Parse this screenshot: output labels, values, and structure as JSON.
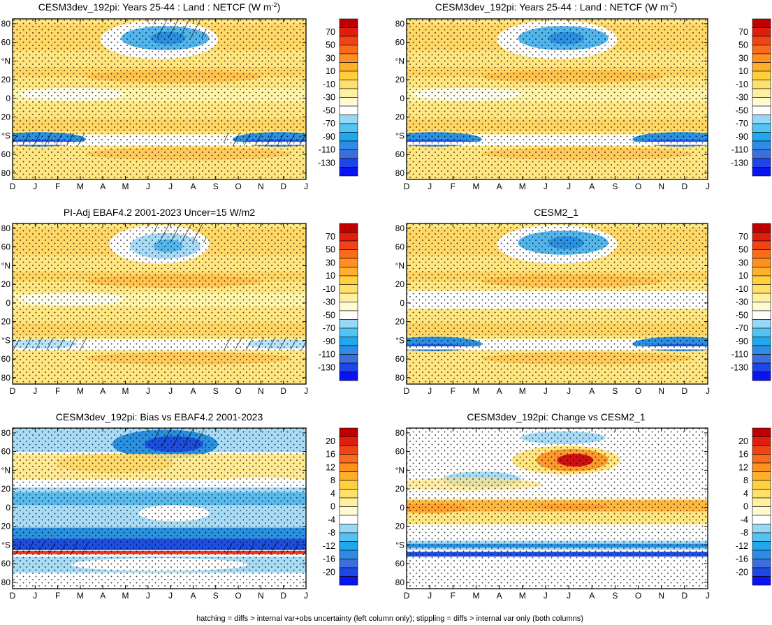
{
  "footer": "hatching = diffs > internal var+obs uncertainty (left column only); stippling = diffs > internal var only (both columns)",
  "colors": {
    "abs_scale": [
      "#0a14f0",
      "#1e46e6",
      "#3c6edc",
      "#2c8ce6",
      "#20a8ee",
      "#52c4f2",
      "#96d8f6",
      "#ffffff",
      "#fffad2",
      "#fff0a0",
      "#ffe06a",
      "#ffcf3c",
      "#ffb02a",
      "#ff9020",
      "#fa6c1a",
      "#f04414",
      "#e01e0e",
      "#c00000"
    ],
    "diff_scale": [
      "#0a14f0",
      "#1e46e6",
      "#3c6edc",
      "#2c8ce6",
      "#20a8ee",
      "#52c4f2",
      "#96d8f6",
      "#ffffff",
      "#fffad2",
      "#fff0a0",
      "#ffe06a",
      "#ffcf3c",
      "#ffb02a",
      "#ff9020",
      "#fa6c1a",
      "#f04414",
      "#e01e0e",
      "#c00000"
    ]
  },
  "chart_data": [
    {
      "type": "heatmap",
      "title": "CESM3dev_192pi: Years 25-44 : Land : NETCF (W m",
      "title_sup": "-2",
      "title_tail": ")",
      "x": [
        "D",
        "J",
        "F",
        "M",
        "A",
        "M",
        "J",
        "J",
        "A",
        "S",
        "O",
        "N",
        "D",
        "J"
      ],
      "y_ticks": [
        "80",
        "60",
        "°N",
        "20",
        "0",
        "20",
        "°S",
        "60",
        "80"
      ],
      "colorbar": [
        "70",
        "50",
        "30",
        "10",
        "-10",
        "-30",
        "-50",
        "-70",
        "-90",
        "-110",
        "-130"
      ],
      "hatching": true,
      "fields": {
        "base": "yellow",
        "blob_north": "blue",
        "band_south": "blue"
      }
    },
    {
      "type": "heatmap",
      "title": "CESM3dev_192pi: Years 25-44 : Land : NETCF (W m",
      "title_sup": "-2",
      "title_tail": ")",
      "x": [
        "D",
        "J",
        "F",
        "M",
        "A",
        "M",
        "J",
        "J",
        "A",
        "S",
        "O",
        "N",
        "D",
        "J"
      ],
      "y_ticks": [
        "80",
        "60",
        "°N",
        "20",
        "0",
        "20",
        "°S",
        "60",
        "80"
      ],
      "colorbar": [
        "70",
        "50",
        "30",
        "10",
        "-10",
        "-30",
        "-50",
        "-70",
        "-90",
        "-110",
        "-130"
      ],
      "hatching": false,
      "fields": {
        "base": "yellow",
        "blob_north": "blue",
        "band_south": "blue"
      }
    },
    {
      "type": "heatmap",
      "title": "PI-Adj EBAF4.2 2001-2023 Uncer=15 W/m2",
      "x": [
        "D",
        "J",
        "F",
        "M",
        "A",
        "M",
        "J",
        "J",
        "A",
        "S",
        "O",
        "N",
        "D",
        "J"
      ],
      "y_ticks": [
        "80",
        "60",
        "°N",
        "20",
        "0",
        "20",
        "°S",
        "60",
        "80"
      ],
      "colorbar": [
        "70",
        "50",
        "30",
        "10",
        "-10",
        "-30",
        "-50",
        "-70",
        "-90",
        "-110",
        "-130"
      ],
      "hatching": true,
      "fields": {
        "base": "yellow",
        "blob_north": "lightblue",
        "band_south": "white"
      }
    },
    {
      "type": "heatmap",
      "title": "CESM2_1",
      "x": [
        "D",
        "J",
        "F",
        "M",
        "A",
        "M",
        "J",
        "J",
        "A",
        "S",
        "O",
        "N",
        "D",
        "J"
      ],
      "y_ticks": [
        "80",
        "60",
        "°N",
        "20",
        "0",
        "20",
        "°S",
        "60",
        "80"
      ],
      "colorbar": [
        "70",
        "50",
        "30",
        "10",
        "-10",
        "-30",
        "-50",
        "-70",
        "-90",
        "-110",
        "-130"
      ],
      "hatching": false,
      "fields": {
        "base": "yellow",
        "blob_north": "blue",
        "band_south": "blue"
      }
    },
    {
      "type": "heatmap",
      "title": "CESM3dev_192pi: Bias vs EBAF4.2 2001-2023",
      "x": [
        "D",
        "J",
        "F",
        "M",
        "A",
        "M",
        "J",
        "J",
        "A",
        "S",
        "O",
        "N",
        "D",
        "J"
      ],
      "y_ticks": [
        "80",
        "60",
        "°N",
        "20",
        "0",
        "20",
        "°S",
        "60",
        "80"
      ],
      "colorbar": [
        "20",
        "16",
        "12",
        "8",
        "4",
        "0",
        "-4",
        "-8",
        "-12",
        "-16",
        "-20"
      ],
      "hatching": true,
      "fields": {
        "base": "mixed",
        "blob_north": "darkblue",
        "band_south": "darkblue"
      }
    },
    {
      "type": "heatmap",
      "title": "CESM3dev_192pi: Change vs CESM2_1",
      "x": [
        "D",
        "J",
        "F",
        "M",
        "A",
        "M",
        "J",
        "J",
        "A",
        "S",
        "O",
        "N",
        "D",
        "J"
      ],
      "y_ticks": [
        "80",
        "60",
        "°N",
        "20",
        "0",
        "20",
        "°S",
        "60",
        "80"
      ],
      "colorbar": [
        "20",
        "16",
        "12",
        "8",
        "4",
        "0",
        "-4",
        "-8",
        "-12",
        "-16",
        "-20"
      ],
      "hatching": false,
      "fields": {
        "base": "white",
        "blob_north": "red",
        "band_south": "blue"
      }
    }
  ]
}
